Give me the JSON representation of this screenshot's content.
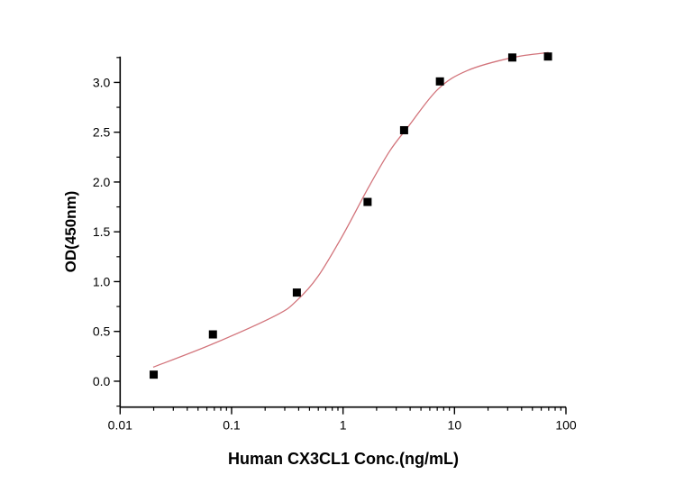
{
  "chart_data": {
    "type": "scatter",
    "title": "",
    "xlabel": "Human CX3CL1 Conc.(ng/mL)",
    "ylabel": "OD(450nm)",
    "xscale": "log",
    "xlim": [
      0.01,
      100
    ],
    "ylim": [
      -0.26,
      3.26
    ],
    "xticks": [
      0.01,
      0.1,
      1,
      10,
      100
    ],
    "xtick_labels": [
      "0.01",
      "0.1",
      "1",
      "10",
      "100"
    ],
    "yticks": [
      0.0,
      0.5,
      1.0,
      1.5,
      2.0,
      2.5,
      3.0
    ],
    "ytick_labels": [
      "0.0",
      "0.5",
      "1.0",
      "1.5",
      "2.0",
      "2.5",
      "3.0"
    ],
    "grid": false,
    "legend": "none",
    "series": [
      {
        "kind": "points",
        "marker": "square",
        "color": "#000000",
        "x": [
          0.02,
          0.068,
          0.385,
          1.66,
          3.53,
          7.4,
          33,
          69
        ],
        "y": [
          0.066,
          0.47,
          0.89,
          1.8,
          2.52,
          3.01,
          3.25,
          3.26
        ]
      },
      {
        "kind": "fit-curve",
        "color": "#d2737a",
        "x": [
          0.0198,
          0.068,
          0.25,
          0.385,
          0.594,
          1.0,
          1.7,
          2.62,
          3.81,
          7.08,
          13.1,
          33.3,
          69.8
        ],
        "y": [
          0.141,
          0.375,
          0.661,
          0.81,
          1.05,
          1.47,
          1.95,
          2.31,
          2.55,
          2.93,
          3.12,
          3.25,
          3.3
        ]
      }
    ]
  }
}
